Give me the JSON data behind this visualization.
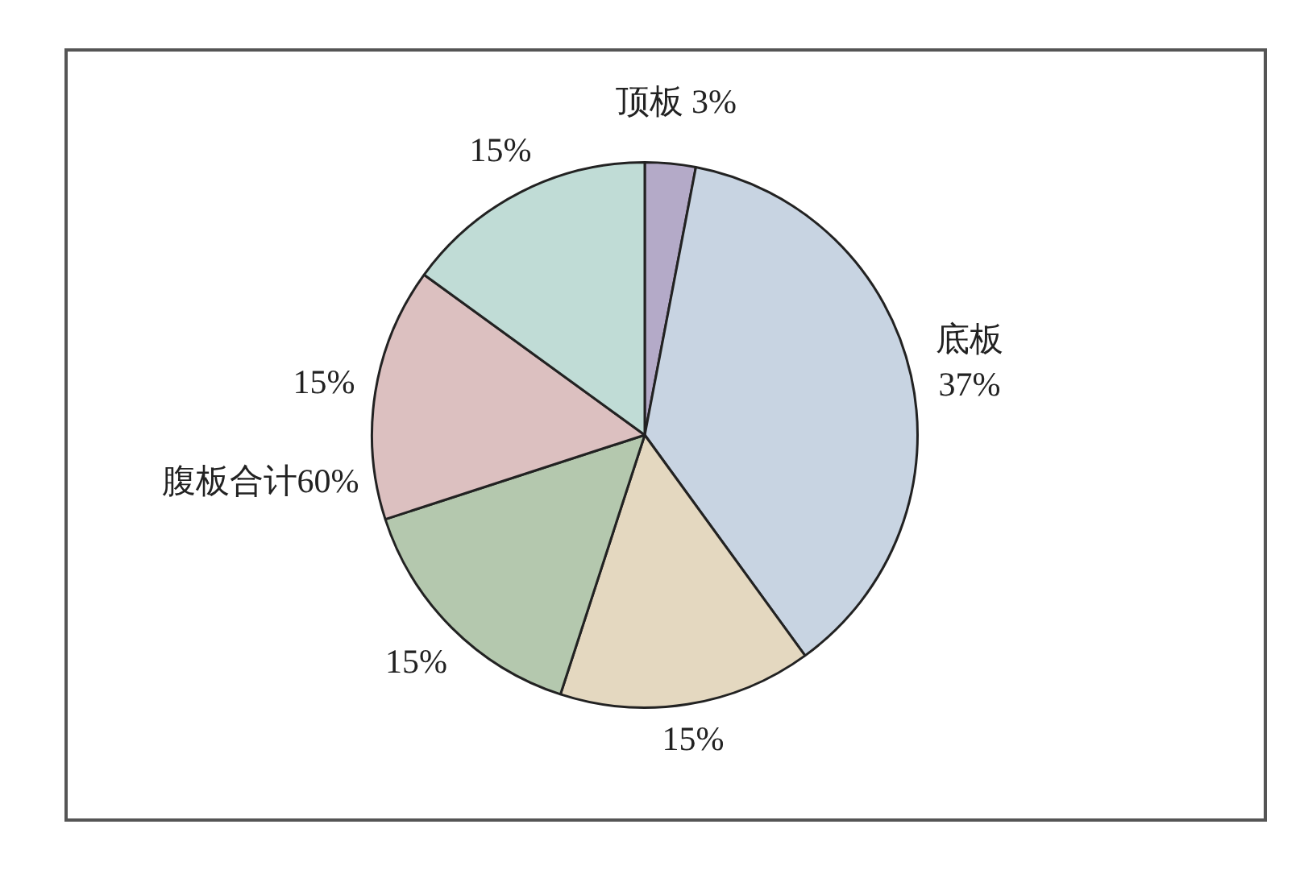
{
  "chart_data": {
    "type": "pie",
    "categories": [
      "顶板",
      "底板",
      null,
      null,
      null,
      null
    ],
    "values": [
      3,
      37,
      15,
      15,
      15,
      15
    ],
    "value_labels": [
      "3%",
      "37%",
      "15%",
      "15%",
      "15%",
      "15%"
    ],
    "colors": [
      "#b4aac8",
      "#c8d4e2",
      "#e4d8c0",
      "#b4c8ae",
      "#dcc0c0",
      "#c0dcd6"
    ],
    "annotations": [
      "腹板合计60%"
    ],
    "legend": false
  }
}
